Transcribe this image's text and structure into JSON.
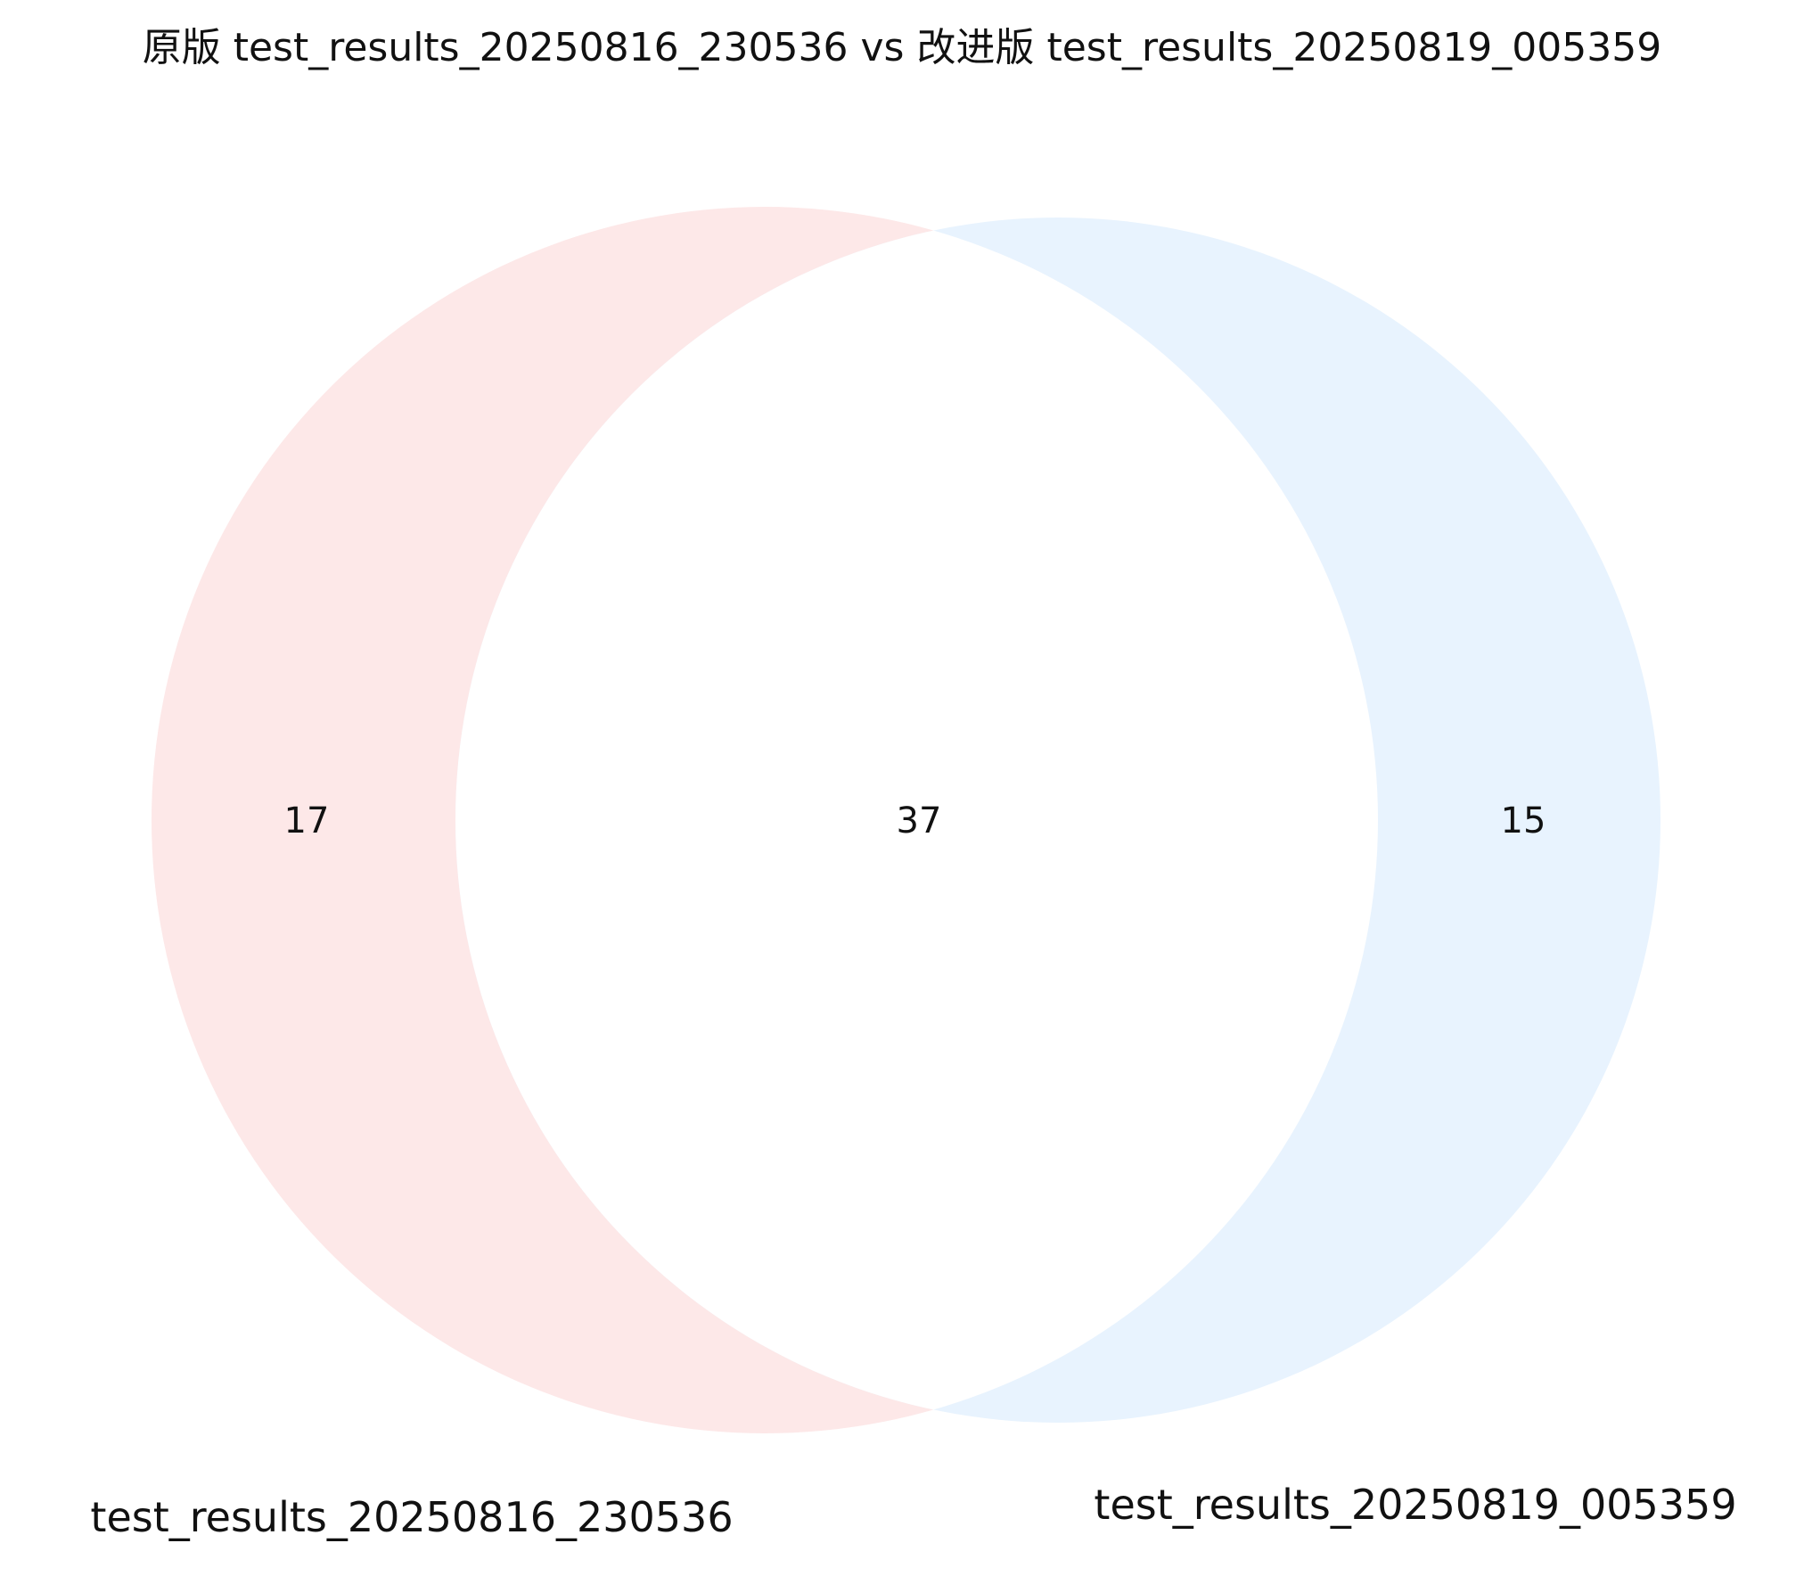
{
  "chart_data": {
    "type": "venn",
    "title": "原版 test_results_20250816_230536 vs 改进版 test_results_20250819_005359",
    "sets": [
      {
        "name": "test_results_20250816_230536",
        "only_count": 17,
        "color": "#fde8e8"
      },
      {
        "name": "test_results_20250819_005359",
        "only_count": 15,
        "color": "#e8f3fe"
      }
    ],
    "intersection": {
      "count": 37,
      "color": "#ffffff"
    }
  }
}
